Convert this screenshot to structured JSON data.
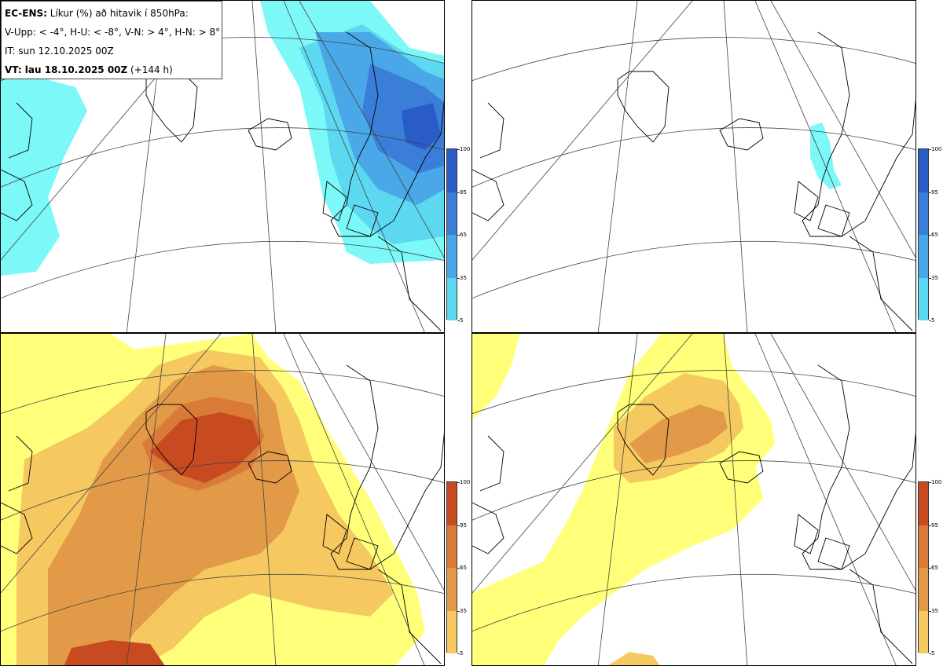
{
  "header": {
    "model": "EC-ENS:",
    "title": "Líkur (%) að hitavik í 850hPa:",
    "definitions": "V-Upp: < -4°, H-U: < -8°, V-N: > 4°, H-N: > 8°",
    "init_time": "IT: sun 12.10.2025 00Z",
    "valid_label": "VT: lau 18.10.2025 00Z",
    "valid_offset": "(+144 h)"
  },
  "colorbar_ticks": [
    "100",
    "95",
    "65",
    "35",
    "5"
  ],
  "palettes": {
    "cold": [
      "#7cf8f8",
      "#5cd8f0",
      "#4aa8e8",
      "#3a7ed8",
      "#2a5cc8"
    ],
    "warm": [
      "#ffff7a",
      "#f5c860",
      "#e39a48",
      "#d97a38",
      "#c84a20"
    ]
  },
  "panels": [
    {
      "id": "top-left",
      "palette": "cold"
    },
    {
      "id": "top-right",
      "palette": "cold"
    },
    {
      "id": "bottom-left",
      "palette": "warm"
    },
    {
      "id": "bottom-right",
      "palette": "warm"
    }
  ]
}
